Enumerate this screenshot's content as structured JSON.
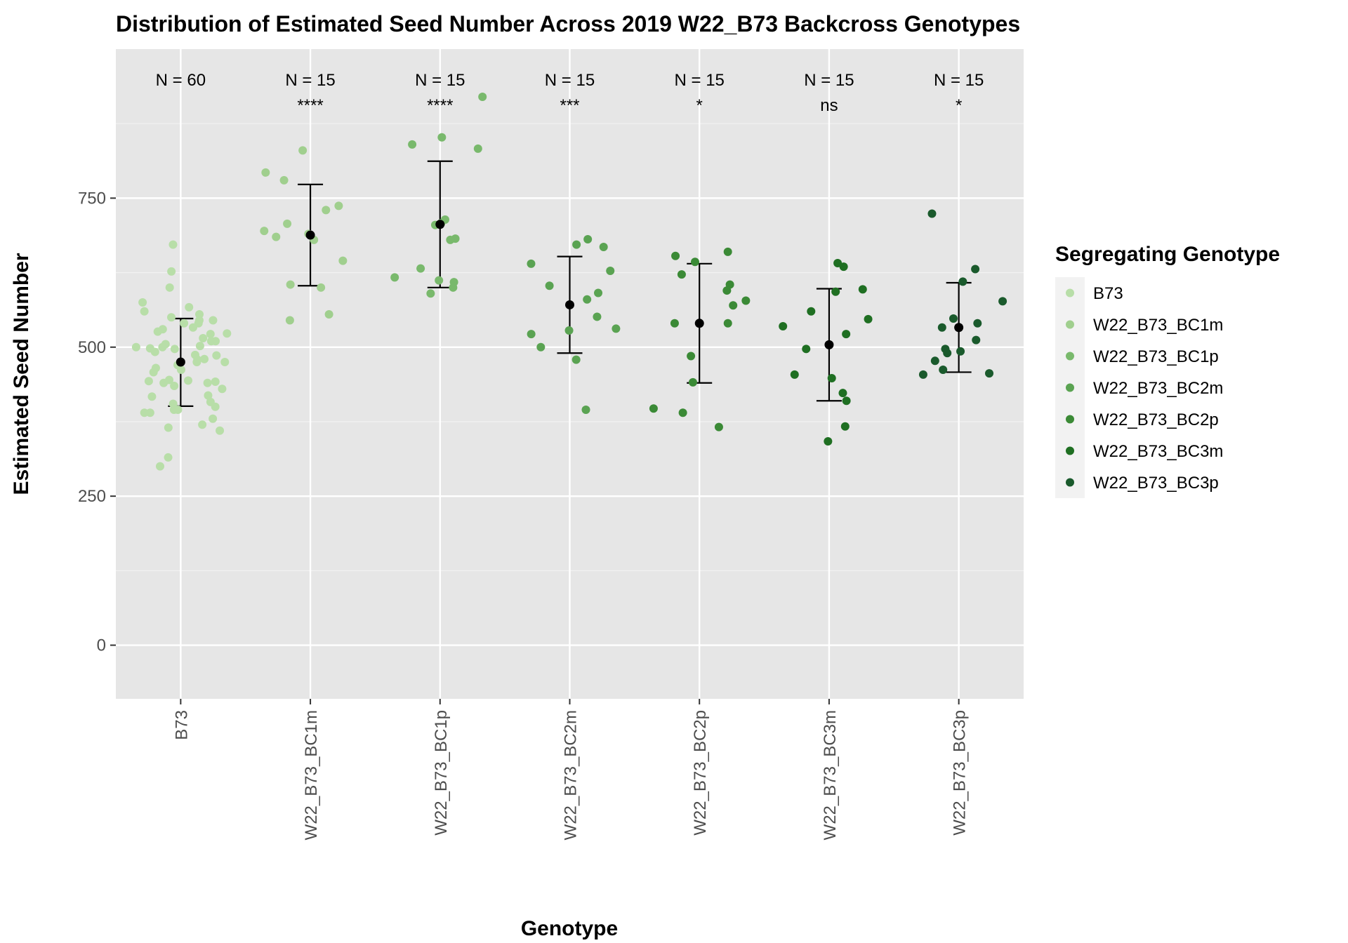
{
  "chart_data": {
    "type": "scatter",
    "title": "Distribution of Estimated Seed Number Across 2019 W22_B73 Backcross Genotypes",
    "xlabel": "Genotype",
    "ylabel": "Estimated Seed Number",
    "ylim": [
      -90,
      1000
    ],
    "yticks": [
      0,
      250,
      500,
      750
    ],
    "ytick_labels": [
      "0",
      "250",
      "500",
      "750"
    ],
    "grid": true,
    "legend_title": "Segregating Genotype",
    "legend_position": "right",
    "categories": [
      "B73",
      "W22_B73_BC1m",
      "W22_B73_BC1p",
      "W22_B73_BC2m",
      "W22_B73_BC2p",
      "W22_B73_BC3m",
      "W22_B73_BC3p"
    ],
    "x_tick_labels": [
      "B73",
      "W22_B73_BC1m",
      "W22_B73_BC1p",
      "W22_B73_BC2m",
      "W22_B73_BC2p",
      "W22_B73_BC3m",
      "W22_B73_BC3p"
    ],
    "colors": [
      "#b8dea8",
      "#a0cf8e",
      "#79b96c",
      "#5aa352",
      "#3b8a36",
      "#1f6f22",
      "#1a5a2c"
    ],
    "n_labels": [
      "N = 60",
      "N = 15",
      "N = 15",
      "N = 15",
      "N = 15",
      "N = 15",
      "N = 15"
    ],
    "significance": [
      "",
      "****",
      "****",
      "***",
      "*",
      "ns",
      "*"
    ],
    "means": [
      475,
      688,
      706,
      571,
      540,
      504,
      533
    ],
    "error_low": [
      401,
      603,
      600,
      490,
      440,
      410,
      458
    ],
    "error_high": [
      548,
      773,
      812,
      652,
      640,
      598,
      608
    ],
    "points": [
      [
        487,
        500,
        533,
        523,
        479,
        475,
        498,
        486,
        502,
        510,
        515,
        505,
        419,
        417,
        444,
        465,
        458,
        440,
        442,
        380,
        390,
        395,
        370,
        315,
        300,
        365,
        360,
        400,
        405,
        395,
        408,
        390,
        443,
        440,
        445,
        462,
        475,
        470,
        480,
        492,
        497,
        510,
        522,
        530,
        540,
        545,
        555,
        560,
        567,
        575,
        540,
        550,
        545,
        526,
        600,
        627,
        672,
        430,
        435,
        500
      ],
      [
        707,
        685,
        730,
        695,
        605,
        545,
        830,
        780,
        737,
        690,
        680,
        645,
        600,
        555,
        793
      ],
      [
        714,
        705,
        708,
        682,
        632,
        612,
        920,
        840,
        852,
        833,
        680,
        617,
        600,
        609,
        590
      ],
      [
        591,
        580,
        603,
        551,
        531,
        528,
        500,
        479,
        395,
        668,
        672,
        681,
        640,
        628,
        522
      ],
      [
        653,
        643,
        660,
        622,
        570,
        540,
        540,
        485,
        441,
        397,
        390,
        366,
        605,
        595,
        578
      ],
      [
        641,
        597,
        560,
        535,
        497,
        448,
        423,
        410,
        367,
        342,
        635,
        547,
        522,
        454,
        593
      ],
      [
        724,
        631,
        548,
        533,
        512,
        497,
        490,
        477,
        462,
        454,
        610,
        577,
        540,
        493,
        456
      ]
    ]
  }
}
